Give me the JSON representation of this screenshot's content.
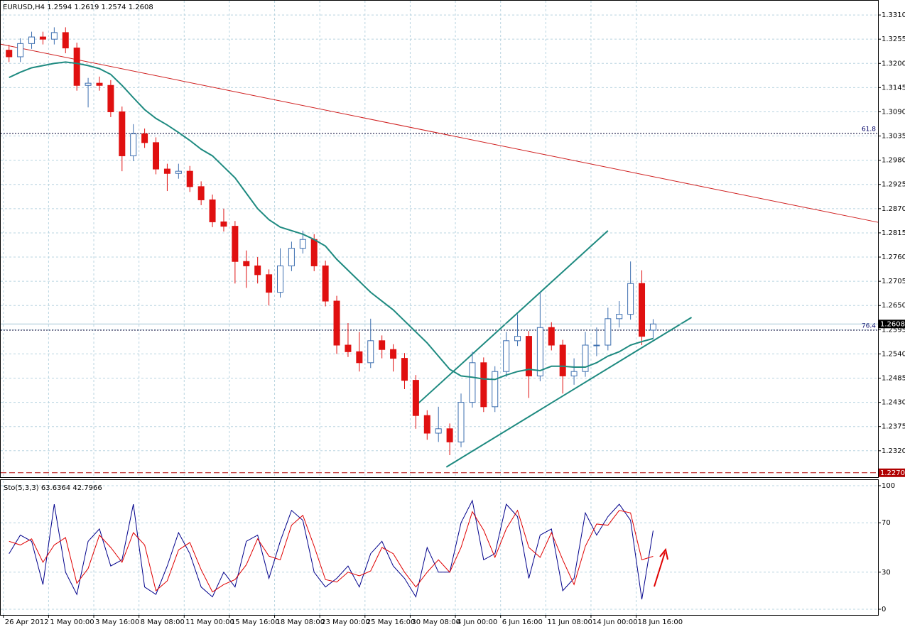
{
  "chart_data": [
    {
      "type": "candlestick",
      "title": "EURUSD,H4  1.2594 1.2619 1.2574 1.2608",
      "up_color": "#3d6fb0",
      "down_color": "#e01010",
      "x": [
        0,
        1,
        2,
        3,
        4,
        5,
        6,
        7,
        8,
        9,
        10,
        11,
        12,
        13,
        14,
        15,
        16,
        17,
        18,
        19,
        20,
        21,
        22,
        23,
        24,
        25,
        26,
        27,
        28,
        29,
        30,
        31,
        32,
        33,
        34,
        35,
        36,
        37,
        38,
        39,
        40,
        41,
        42,
        43,
        44,
        45,
        46,
        47,
        48,
        49,
        50,
        51,
        52,
        53,
        54,
        55,
        56,
        57
      ],
      "open": [
        1.323,
        1.3215,
        1.3245,
        1.326,
        1.3255,
        1.327,
        1.3235,
        1.315,
        1.3155,
        1.315,
        1.309,
        1.299,
        1.304,
        1.302,
        1.296,
        1.295,
        1.2955,
        1.292,
        1.289,
        1.284,
        1.283,
        1.275,
        1.274,
        1.272,
        1.268,
        1.274,
        1.278,
        1.28,
        1.274,
        1.266,
        1.256,
        1.2545,
        1.252,
        1.257,
        1.255,
        1.253,
        1.248,
        1.24,
        1.236,
        1.237,
        1.234,
        1.243,
        1.252,
        1.242,
        1.25,
        1.257,
        1.258,
        1.249,
        1.26,
        1.256,
        1.249,
        1.25,
        1.256,
        1.256,
        1.262,
        1.263,
        1.27,
        1.2594
      ],
      "high": [
        1.3242,
        1.3257,
        1.3272,
        1.3272,
        1.3282,
        1.3282,
        1.3247,
        1.3167,
        1.317,
        1.3162,
        1.3102,
        1.3062,
        1.3052,
        1.3032,
        1.2972,
        1.2972,
        1.2967,
        1.2932,
        1.2902,
        1.287,
        1.2842,
        1.2775,
        1.276,
        1.2732,
        1.278,
        1.2795,
        1.282,
        1.2812,
        1.2752,
        1.2672,
        1.261,
        1.259,
        1.262,
        1.2582,
        1.2562,
        1.2542,
        1.2492,
        1.2412,
        1.242,
        1.2382,
        1.245,
        1.2545,
        1.2532,
        1.2512,
        1.259,
        1.263,
        1.2592,
        1.268,
        1.2612,
        1.2572,
        1.253,
        1.259,
        1.26,
        1.2645,
        1.266,
        1.275,
        1.273,
        1.2619
      ],
      "low": [
        1.3203,
        1.3203,
        1.3233,
        1.3243,
        1.3243,
        1.3223,
        1.3138,
        1.31,
        1.3138,
        1.3078,
        1.2955,
        1.2978,
        1.3008,
        1.2948,
        1.291,
        1.2938,
        1.2908,
        1.2878,
        1.2828,
        1.2818,
        1.27,
        1.269,
        1.27,
        1.265,
        1.2668,
        1.2728,
        1.2768,
        1.2728,
        1.2648,
        1.254,
        1.2533,
        1.25,
        1.2508,
        1.253,
        1.25,
        1.246,
        1.237,
        1.2345,
        1.234,
        1.231,
        1.2328,
        1.2418,
        1.2408,
        1.2408,
        1.2488,
        1.2558,
        1.244,
        1.2478,
        1.2548,
        1.245,
        1.247,
        1.2488,
        1.2535,
        1.2548,
        1.26,
        1.2618,
        1.256,
        1.2574
      ],
      "close": [
        1.3215,
        1.3245,
        1.326,
        1.3255,
        1.327,
        1.3235,
        1.315,
        1.3155,
        1.315,
        1.309,
        1.299,
        1.304,
        1.302,
        1.296,
        1.295,
        1.2955,
        1.292,
        1.289,
        1.284,
        1.283,
        1.275,
        1.274,
        1.272,
        1.268,
        1.274,
        1.278,
        1.28,
        1.274,
        1.266,
        1.256,
        1.2545,
        1.252,
        1.257,
        1.255,
        1.253,
        1.248,
        1.24,
        1.236,
        1.237,
        1.234,
        1.243,
        1.252,
        1.242,
        1.25,
        1.257,
        1.258,
        1.249,
        1.26,
        1.256,
        1.249,
        1.25,
        1.256,
        1.256,
        1.262,
        1.263,
        1.27,
        1.258,
        1.2608
      ],
      "ma": {
        "color": "#1e8a80",
        "values": [
          1.3168,
          1.318,
          1.319,
          1.3195,
          1.32,
          1.3203,
          1.32,
          1.3195,
          1.3188,
          1.3175,
          1.315,
          1.3122,
          1.3095,
          1.3075,
          1.306,
          1.3043,
          1.3025,
          1.3005,
          1.299,
          1.2965,
          1.294,
          1.2905,
          1.287,
          1.2845,
          1.2828,
          1.282,
          1.2812,
          1.28,
          1.2785,
          1.2755,
          1.273,
          1.2705,
          1.268,
          1.266,
          1.264,
          1.2615,
          1.259,
          1.2565,
          1.2535,
          1.2505,
          1.249,
          1.2487,
          1.2483,
          1.2482,
          1.2492,
          1.25,
          1.2505,
          1.2502,
          1.2512,
          1.2512,
          1.251,
          1.251,
          1.252,
          1.2535,
          1.2545,
          1.256,
          1.2568,
          1.2575
        ]
      },
      "trendlines": [
        {
          "color": "#d02020",
          "x": [
            -0.8,
            76.9
          ],
          "y": [
            1.3244,
            1.2839
          ]
        },
        {
          "color": "#1e8a80",
          "x": [
            35.97,
            53.0
          ],
          "y": [
            1.2422,
            1.282
          ]
        },
        {
          "color": "#1e8a80",
          "x": [
            38.7,
            60.4
          ],
          "y": [
            1.2283,
            1.2623
          ]
        }
      ],
      "levels": [
        {
          "label": "61.8",
          "value": 1.3041
        },
        {
          "label": "76.4",
          "value": 1.2594
        }
      ],
      "support": {
        "value": 1.227,
        "label": "1.2270",
        "color": "#b00000"
      },
      "last_price": 1.2608,
      "xlim": [
        -0.8,
        76.9
      ],
      "ylim": [
        1.226,
        1.3344
      ],
      "yticks": [
        {
          "value": 1.331,
          "label": "1.3310"
        },
        1.3255,
        {
          "value": 1.32,
          "label": "1.3200"
        },
        1.3145,
        {
          "value": 1.309,
          "label": "1.3090"
        },
        1.3035,
        {
          "value": 1.298,
          "label": "1.2980"
        },
        1.2925,
        {
          "value": 1.287,
          "label": "1.2870"
        },
        1.2815,
        {
          "value": 1.276,
          "label": "1.2760"
        },
        1.2705,
        {
          "value": 1.265,
          "label": "1.2650"
        },
        1.2595,
        {
          "value": 1.254,
          "label": "1.2540"
        },
        1.2485,
        {
          "value": 1.243,
          "label": "1.2430"
        },
        1.2375,
        {
          "value": 1.232,
          "label": "1.2320"
        }
      ],
      "grid": true
    },
    {
      "type": "line",
      "title": "Sto(5,3,3) 63.6364 42.7966",
      "x": [
        0,
        1,
        2,
        3,
        4,
        5,
        6,
        7,
        8,
        9,
        10,
        11,
        12,
        13,
        14,
        15,
        16,
        17,
        18,
        19,
        20,
        21,
        22,
        23,
        24,
        25,
        26,
        27,
        28,
        29,
        30,
        31,
        32,
        33,
        34,
        35,
        36,
        37,
        38,
        39,
        40,
        41,
        42,
        43,
        44,
        45,
        46,
        47,
        48,
        49,
        50,
        51,
        52,
        53,
        54,
        55,
        56,
        57
      ],
      "series": [
        {
          "color": "#00008b",
          "values": [
            45,
            60,
            55,
            20,
            85,
            30,
            12,
            55,
            65,
            35,
            40,
            85,
            18,
            12,
            35,
            62,
            45,
            18,
            10,
            30,
            18,
            55,
            60,
            25,
            55,
            80,
            72,
            30,
            18,
            25,
            35,
            18,
            45,
            55,
            35,
            25,
            10,
            50,
            30,
            30,
            70,
            88,
            40,
            45,
            85,
            75,
            25,
            60,
            65,
            15,
            25,
            78,
            60,
            75,
            85,
            72,
            8,
            63.6364
          ]
        },
        {
          "color": "#e00000",
          "values": [
            55,
            52,
            57,
            38,
            52,
            58,
            21,
            33,
            60,
            50,
            38,
            62,
            52,
            15,
            23,
            48,
            54,
            32,
            14,
            20,
            24,
            36,
            57,
            43,
            40,
            68,
            76,
            51,
            24,
            22,
            30,
            27,
            31,
            50,
            45,
            30,
            18,
            30,
            40,
            30,
            50,
            79,
            64,
            42,
            65,
            80,
            50,
            42,
            62,
            40,
            20,
            51,
            69,
            68,
            80,
            78,
            40,
            42.7966
          ]
        }
      ],
      "xlim": [
        -0.8,
        76.9
      ],
      "ylim": [
        -4.6,
        104.6
      ],
      "yticks": [
        100,
        70,
        30,
        0
      ],
      "xticks": [
        {
          "value": -0.5,
          "label": "26 Apr 2012"
        },
        {
          "value": 3.5,
          "label": "1 May 00:00"
        },
        {
          "value": 7.5,
          "label": "3 May 16:00"
        },
        {
          "value": 11.5,
          "label": "8 May 08:00"
        },
        {
          "value": 15.5,
          "label": "11 May 00:00"
        },
        {
          "value": 19.5,
          "label": "15 May 16:00"
        },
        {
          "value": 23.5,
          "label": "18 May 08:00"
        },
        {
          "value": 27.5,
          "label": "23 May 00:00"
        },
        {
          "value": 31.5,
          "label": "25 May 16:00"
        },
        {
          "value": 35.5,
          "label": "30 May 08:00"
        },
        {
          "value": 39.5,
          "label": "4 Jun 00:00"
        },
        {
          "value": 43.5,
          "label": "6 Jun 16:00"
        },
        {
          "value": 47.5,
          "label": "11 Jun 08:00"
        },
        {
          "value": 51.5,
          "label": "14 Jun 00:00"
        },
        {
          "value": 55.5,
          "label": "18 Jun 16:00"
        }
      ],
      "grid": true
    }
  ]
}
